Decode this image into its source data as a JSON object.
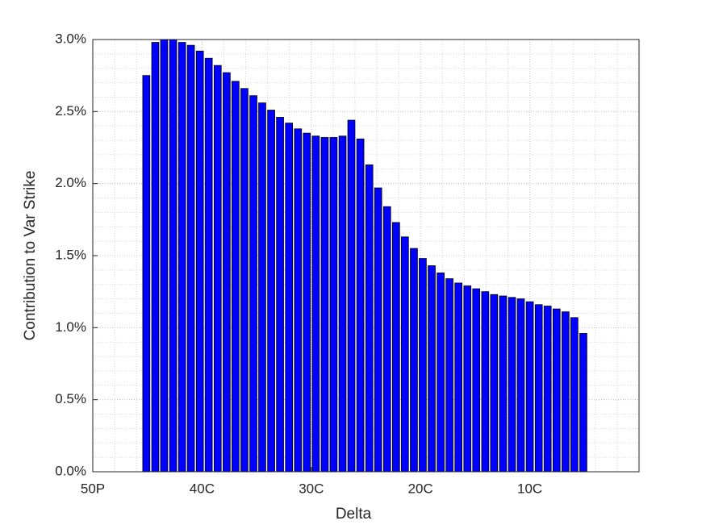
{
  "chart_data": {
    "type": "bar",
    "xlabel": "Delta",
    "ylabel": "Contribution to Var Strike",
    "x": [
      4.9,
      5.72,
      6.53,
      7.35,
      8.17,
      8.98,
      9.8,
      10.61,
      11.43,
      12.25,
      13.06,
      13.88,
      14.7,
      15.51,
      16.33,
      17.14,
      17.96,
      18.78,
      19.59,
      20.41,
      21.23,
      22.04,
      22.86,
      23.67,
      24.49,
      25.31,
      26.12,
      26.94,
      27.76,
      28.57,
      29.39,
      30.2,
      31.02,
      31.84,
      32.65,
      33.47,
      34.29,
      35.1,
      35.92,
      36.73,
      37.55,
      38.37,
      39.18,
      40.0,
      40.82,
      41.63,
      42.45,
      43.27,
      44.08,
      44.9
    ],
    "values": [
      2.75,
      2.98,
      3.0,
      3.0,
      2.98,
      2.96,
      2.92,
      2.87,
      2.82,
      2.77,
      2.71,
      2.66,
      2.61,
      2.56,
      2.51,
      2.46,
      2.42,
      2.38,
      2.35,
      2.33,
      2.32,
      2.32,
      2.33,
      2.44,
      2.31,
      2.13,
      1.97,
      1.84,
      1.73,
      1.63,
      1.55,
      1.48,
      1.43,
      1.38,
      1.34,
      1.31,
      1.29,
      1.27,
      1.25,
      1.23,
      1.22,
      1.21,
      1.2,
      1.18,
      1.16,
      1.15,
      1.13,
      1.11,
      1.07,
      0.96
    ],
    "color": "#0000ff",
    "xlim": [
      0,
      50
    ],
    "xticks": [
      {
        "value": 0,
        "label": "50P"
      },
      {
        "value": 10,
        "label": "40C"
      },
      {
        "value": 20,
        "label": "30C"
      },
      {
        "value": 30,
        "label": "20C"
      },
      {
        "value": 40,
        "label": "10C"
      }
    ],
    "ylim": [
      0,
      3
    ],
    "yticks": [
      {
        "value": 0,
        "label": "0.0%"
      },
      {
        "value": 0.5,
        "label": "0.5%"
      },
      {
        "value": 1,
        "label": "1.0%"
      },
      {
        "value": 1.5,
        "label": "1.5%"
      },
      {
        "value": 2,
        "label": "2.0%"
      },
      {
        "value": 2.5,
        "label": "2.5%"
      },
      {
        "value": 3,
        "label": "3.0%"
      }
    ],
    "grid": true,
    "minor_grid": true
  }
}
